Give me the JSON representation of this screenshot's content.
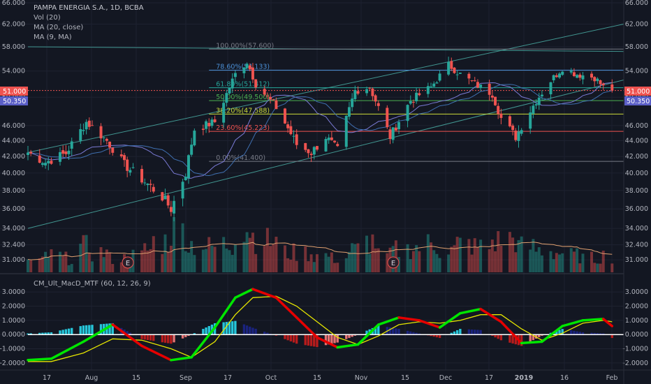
{
  "header": {
    "title": "PAMPA ENERGIA S.A., 1D, BCBA",
    "ind1": "Vol (20)",
    "ind2": "MA (20, close)",
    "ind3": "MA (9, MA)",
    "lower_title": "CM_Ult_MacD_MTF (60, 12, 26, 9)"
  },
  "price_axis": {
    "ticks": [
      "66.000",
      "62.000",
      "58.000",
      "54.000",
      "50.000",
      "46.000",
      "44.000",
      "42.000",
      "40.000",
      "38.000",
      "36.000",
      "34.000",
      "32.400",
      "31.000"
    ]
  },
  "macd_axis": {
    "ticks": [
      "3.0000",
      "2.0000",
      "1.0000",
      "0.0000",
      "-1.0000",
      "-2.0000"
    ]
  },
  "time_axis": {
    "labels": [
      "17",
      "Aug",
      "15",
      "Sep",
      "17",
      "Oct",
      "15",
      "Nov",
      "15",
      "Dec",
      "17",
      "2019",
      "16",
      "Feb"
    ]
  },
  "badges": {
    "last_price": "51.000",
    "ma_price": "50.350",
    "earnings": "E"
  },
  "fib_levels": [
    {
      "label": "100.00%(57.600)",
      "price": 57.6,
      "color": "#787b86"
    },
    {
      "label": "78.60%(54.133)",
      "price": 54.133,
      "color": "#4b8fd6"
    },
    {
      "label": "61.80%(51.412)",
      "price": 51.412,
      "color": "#26a69a"
    },
    {
      "label": "50.00%(49.500)",
      "price": 49.5,
      "color": "#4caf50"
    },
    {
      "label": "38.20%(47.588)",
      "price": 47.588,
      "color": "#cddc39"
    },
    {
      "label": "23.60%(45.223)",
      "price": 45.223,
      "color": "#ef5350"
    },
    {
      "label": "0.00%(41.400)",
      "price": 41.4,
      "color": "#787b86"
    }
  ],
  "colors": {
    "up": "#26a69a",
    "down": "#ef5350",
    "macd_up": "#00e600",
    "macd_down": "#e60000",
    "signal": "#e6e600",
    "hist_up_strong": "#26c6da",
    "hist_up_weak": "#1a237e",
    "hist_down_strong": "#b71c1c",
    "hist_down_weak": "#e57373",
    "ma20": "#7b7bd6",
    "ma9": "#3f6fb0",
    "vol_ma": "#e0a070",
    "channel": "#4db6ac"
  },
  "chart_data": [
    {
      "type": "candlestick",
      "title": "PAMPA ENERGIA S.A., 1D, BCBA",
      "y_scale": "log",
      "ylim": [
        30.5,
        66
      ],
      "x_range": [
        "2018-07-12",
        "2019-02-01"
      ],
      "anchors": [
        {
          "date": "2018-07-12",
          "close": 42.5
        },
        {
          "date": "2018-07-18",
          "close": 41.3
        },
        {
          "date": "2018-07-25",
          "close": 42.4
        },
        {
          "date": "2018-08-01",
          "close": 46.5
        },
        {
          "date": "2018-08-08",
          "close": 44.0
        },
        {
          "date": "2018-08-14",
          "close": 41.0
        },
        {
          "date": "2018-08-21",
          "close": 39.0
        },
        {
          "date": "2018-08-27",
          "close": 37.3
        },
        {
          "date": "2018-08-30",
          "close": 36.0
        },
        {
          "date": "2018-09-04",
          "close": 40.0
        },
        {
          "date": "2018-09-07",
          "close": 45.5
        },
        {
          "date": "2018-09-14",
          "close": 46.5
        },
        {
          "date": "2018-09-21",
          "close": 53.5
        },
        {
          "date": "2018-09-25",
          "close": 55.5
        },
        {
          "date": "2018-09-28",
          "close": 52.0
        },
        {
          "date": "2018-10-05",
          "close": 48.5
        },
        {
          "date": "2018-10-12",
          "close": 43.5
        },
        {
          "date": "2018-10-17",
          "close": 42.5
        },
        {
          "date": "2018-10-22",
          "close": 44.5
        },
        {
          "date": "2018-10-26",
          "close": 42.8
        },
        {
          "date": "2018-11-01",
          "close": 51.0
        },
        {
          "date": "2018-11-06",
          "close": 51.5
        },
        {
          "date": "2018-11-13",
          "close": 44.5
        },
        {
          "date": "2018-11-20",
          "close": 49.5
        },
        {
          "date": "2018-11-27",
          "close": 51.5
        },
        {
          "date": "2018-12-03",
          "close": 55.0
        },
        {
          "date": "2018-12-07",
          "close": 53.5
        },
        {
          "date": "2018-12-12",
          "close": 52.0
        },
        {
          "date": "2018-12-18",
          "close": 50.5
        },
        {
          "date": "2018-12-21",
          "close": 47.0
        },
        {
          "date": "2018-12-26",
          "close": 44.5
        },
        {
          "date": "2019-01-02",
          "close": 49.5
        },
        {
          "date": "2019-01-07",
          "close": 52.5
        },
        {
          "date": "2019-01-11",
          "close": 54.5
        },
        {
          "date": "2019-01-16",
          "close": 53.5
        },
        {
          "date": "2019-01-22",
          "close": 53.0
        },
        {
          "date": "2019-01-25",
          "close": 51.5
        },
        {
          "date": "2019-01-28",
          "close": 51.0
        }
      ],
      "last": 51.0
    },
    {
      "type": "bar",
      "title": "Vol (20)",
      "ylim": [
        0,
        1
      ],
      "heights": [
        0.2,
        0.3,
        0.25,
        0.45,
        0.35,
        0.25,
        0.3,
        0.4,
        0.55,
        0.75,
        0.5,
        0.45,
        0.5,
        0.8,
        0.65,
        0.55,
        0.35,
        0.35,
        0.3,
        0.25,
        0.4,
        0.55,
        0.3,
        0.4,
        0.45,
        0.5,
        0.4,
        0.5,
        0.45,
        0.55,
        0.6,
        0.45,
        0.4,
        0.35,
        0.3,
        0.25,
        0.3
      ]
    },
    {
      "type": "line",
      "title": "CM_Ult_MacD_MTF (60, 12, 26, 9)",
      "ylim": [
        -2.4,
        3.6
      ],
      "dates": [
        "2018-07-12",
        "2018-07-20",
        "2018-07-31",
        "2018-08-10",
        "2018-08-20",
        "2018-08-30",
        "2018-09-06",
        "2018-09-14",
        "2018-09-21",
        "2018-09-27",
        "2018-10-05",
        "2018-10-12",
        "2018-10-19",
        "2018-10-26",
        "2018-11-02",
        "2018-11-09",
        "2018-11-16",
        "2018-11-23",
        "2018-11-30",
        "2018-12-07",
        "2018-12-14",
        "2018-12-21",
        "2018-12-28",
        "2019-01-04",
        "2019-01-11",
        "2019-01-18",
        "2019-01-25",
        "2019-01-28"
      ],
      "series": [
        {
          "name": "macd",
          "values": [
            -1.8,
            -1.7,
            -0.5,
            0.7,
            -0.8,
            -1.8,
            -1.6,
            0.5,
            2.6,
            3.2,
            2.6,
            1.2,
            -0.2,
            -0.9,
            -0.7,
            0.7,
            1.2,
            1.0,
            0.5,
            1.5,
            1.8,
            0.9,
            -0.6,
            -0.5,
            0.6,
            1.0,
            1.1,
            0.6
          ]
        },
        {
          "name": "signal",
          "values": [
            -1.9,
            -1.9,
            -1.3,
            -0.3,
            -0.4,
            -1.0,
            -1.6,
            -0.5,
            1.4,
            2.6,
            2.7,
            2.0,
            0.9,
            -0.2,
            -0.7,
            -0.1,
            0.7,
            0.9,
            0.8,
            1.0,
            1.4,
            1.4,
            0.4,
            -0.4,
            0.1,
            0.8,
            1.0,
            0.9
          ]
        }
      ]
    }
  ]
}
